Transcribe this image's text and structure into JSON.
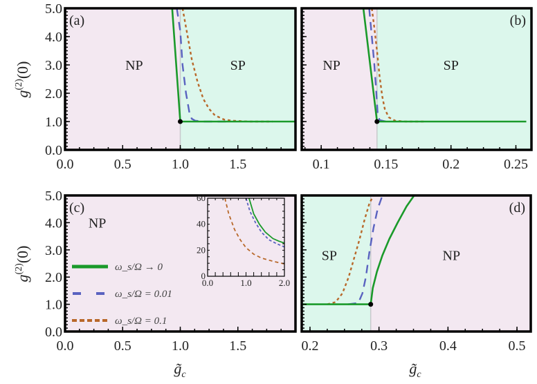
{
  "chart_data": [
    {
      "type": "line",
      "panel": "(a)",
      "xlabel": "",
      "ylabel": "g^(2)(0)",
      "xlim": [
        0.0,
        2.0
      ],
      "ylim": [
        0.0,
        5.0
      ],
      "xticks": [
        "0.0",
        "0.5",
        "1.0",
        "1.5"
      ],
      "xtick_values": [
        0.0,
        0.5,
        1.0,
        1.5
      ],
      "yticks": [
        "0.0",
        "1.0",
        "2.0",
        "3.0",
        "4.0",
        "5.0"
      ],
      "ytick_values": [
        0,
        1,
        2,
        3,
        4,
        5
      ],
      "critical_point": [
        1.0,
        1.0
      ],
      "regions": [
        {
          "label": "NP",
          "from": 0.0,
          "to": 1.0,
          "color": "#f3e8f1",
          "label_pos": [
            0.6,
            3.0
          ]
        },
        {
          "label": "SP",
          "from": 1.0,
          "to": 2.0,
          "color": "#dcf7ec",
          "label_pos": [
            1.5,
            3.0
          ]
        }
      ],
      "series": [
        {
          "name": "omega_s/Omega -> 0",
          "style": "solid",
          "x": [
            0.93,
            1.0,
            1.0,
            2.0
          ],
          "y": [
            5.0,
            1.0,
            1.0,
            1.0
          ]
        },
        {
          "name": "omega_s/Omega = 0.01",
          "style": "dashed",
          "x": [
            0.97,
            1.0,
            1.02,
            1.05,
            1.08,
            1.1,
            1.13,
            1.2,
            1.4
          ],
          "y": [
            5.0,
            4.2,
            3.0,
            2.0,
            1.3,
            1.1,
            1.03,
            1.0,
            1.0
          ]
        },
        {
          "name": "omega_s/Omega = 0.1",
          "style": "dotted",
          "x": [
            1.02,
            1.06,
            1.1,
            1.15,
            1.2,
            1.25,
            1.3,
            1.38,
            1.45,
            1.6,
            1.8
          ],
          "y": [
            5.0,
            4.1,
            3.2,
            2.4,
            1.8,
            1.45,
            1.22,
            1.07,
            1.03,
            1.0,
            1.0
          ]
        }
      ]
    },
    {
      "type": "line",
      "panel": "(b)",
      "xlabel": "",
      "ylabel": "",
      "xlim": [
        0.085,
        0.262
      ],
      "ylim": [
        0.0,
        5.0
      ],
      "xticks": [
        "0.1",
        "0.15",
        "0.2",
        "0.25"
      ],
      "xtick_values": [
        0.1,
        0.15,
        0.2,
        0.25
      ],
      "yticks": [],
      "ytick_values": [
        0,
        1,
        2,
        3,
        4,
        5
      ],
      "critical_point": [
        0.143,
        1.0
      ],
      "regions": [
        {
          "label": "NP",
          "from": 0.085,
          "to": 0.143,
          "color": "#f3e8f1",
          "label_pos": [
            0.108,
            3.0
          ]
        },
        {
          "label": "SP",
          "from": 0.143,
          "to": 0.262,
          "color": "#dcf7ec",
          "label_pos": [
            0.2,
            3.0
          ]
        }
      ],
      "series": [
        {
          "name": "omega_s/Omega -> 0",
          "style": "solid",
          "x": [
            0.1325,
            0.143,
            0.143,
            0.258
          ],
          "y": [
            5.0,
            1.0,
            1.0,
            1.0
          ]
        },
        {
          "name": "omega_s/Omega = 0.01",
          "style": "dashed",
          "x": [
            0.137,
            0.139,
            0.141,
            0.1425,
            0.1435,
            0.145,
            0.15
          ],
          "y": [
            5.0,
            4.0,
            3.0,
            2.0,
            1.3,
            1.05,
            1.0
          ]
        },
        {
          "name": "omega_s/Omega = 0.1",
          "style": "dotted",
          "x": [
            0.139,
            0.141,
            0.143,
            0.145,
            0.147,
            0.149,
            0.152,
            0.157,
            0.165,
            0.18
          ],
          "y": [
            5.0,
            4.3,
            3.5,
            2.6,
            1.9,
            1.45,
            1.15,
            1.03,
            1.0,
            1.0
          ]
        }
      ]
    },
    {
      "type": "line",
      "panel": "(c)",
      "xlabel": "g̃_c",
      "ylabel": "g^(2)(0)",
      "xlim": [
        0.0,
        2.0
      ],
      "ylim": [
        0.0,
        5.0
      ],
      "xticks": [
        "0.0",
        "0.5",
        "1.0",
        "1.5"
      ],
      "xtick_values": [
        0.0,
        0.5,
        1.0,
        1.5
      ],
      "yticks": [
        "0.0",
        "1.0",
        "2.0",
        "3.0",
        "4.0",
        "5.0"
      ],
      "ytick_values": [
        0,
        1,
        2,
        3,
        4,
        5
      ],
      "regions": [
        {
          "label": "NP",
          "from": 0.0,
          "to": 2.0,
          "color": "#f3e8f1",
          "label_pos": [
            0.28,
            4.0
          ]
        }
      ],
      "legend": [
        {
          "label": "ω_s/Ω → 0",
          "style": "solid"
        },
        {
          "label": "ω_s/Ω = 0.01",
          "style": "dashed"
        },
        {
          "label": "ω_s/Ω = 0.1",
          "style": "dotted"
        }
      ],
      "legend_position": "left",
      "inset": {
        "xlim": [
          0.0,
          2.0
        ],
        "ylim": [
          0,
          60
        ],
        "xticks": [
          "0.0",
          "1.0",
          "2.0"
        ],
        "xtick_values": [
          0.0,
          1.0,
          2.0
        ],
        "yticks": [
          "0",
          "20",
          "40",
          "60"
        ],
        "ytick_values": [
          0,
          20,
          40,
          60
        ],
        "series": [
          {
            "name": "omega_s/Omega -> 0",
            "style": "solid",
            "x": [
              1.08,
              1.2,
              1.35,
              1.5,
              1.7,
              1.85,
              2.0
            ],
            "y": [
              60,
              48,
              40,
              34,
              29,
              27,
              25.5
            ]
          },
          {
            "name": "omega_s/Omega = 0.01",
            "style": "dashed",
            "x": [
              1.0,
              1.1,
              1.25,
              1.4,
              1.6,
              1.8,
              2.0
            ],
            "y": [
              60,
              50,
              41,
              34,
              28,
              25,
              22.5
            ]
          },
          {
            "name": "omega_s/Omega = 0.1",
            "style": "dashed-orange",
            "x": [
              0.45,
              0.55,
              0.7,
              0.85,
              1.0,
              1.2,
              1.4,
              1.7,
              2.0
            ],
            "y": [
              60,
              48,
              36,
              28,
              22,
              17,
              14,
              11.5,
              9.5
            ]
          }
        ]
      }
    },
    {
      "type": "line",
      "panel": "(d)",
      "xlabel": "g̃_c",
      "ylabel": "",
      "xlim": [
        0.188,
        0.52
      ],
      "ylim": [
        0.0,
        5.0
      ],
      "xticks": [
        "0.2",
        "0.3",
        "0.4",
        "0.5"
      ],
      "xtick_values": [
        0.2,
        0.3,
        0.4,
        0.5
      ],
      "yticks": [],
      "ytick_values": [
        0,
        1,
        2,
        3,
        4,
        5
      ],
      "critical_point": [
        0.288,
        1.0
      ],
      "regions": [
        {
          "label": "SP",
          "from": 0.188,
          "to": 0.288,
          "color": "#dcf7ec",
          "label_pos": [
            0.228,
            2.8
          ]
        },
        {
          "label": "NP",
          "from": 0.288,
          "to": 0.52,
          "color": "#f3e8f1",
          "label_pos": [
            0.405,
            2.8
          ]
        }
      ],
      "series": [
        {
          "name": "omega_s/Omega -> 0",
          "style": "solid",
          "x": [
            0.188,
            0.288,
            0.288,
            0.291,
            0.297,
            0.305,
            0.315,
            0.327,
            0.34,
            0.351
          ],
          "y": [
            1.0,
            1.0,
            1.0,
            1.6,
            2.2,
            2.8,
            3.4,
            4.0,
            4.6,
            5.0
          ]
        },
        {
          "name": "omega_s/Omega = 0.01",
          "style": "dashed",
          "x": [
            0.255,
            0.27,
            0.276,
            0.281,
            0.286,
            0.292,
            0.298,
            0.305
          ],
          "y": [
            1.0,
            1.05,
            1.4,
            2.0,
            2.9,
            3.8,
            4.5,
            5.0
          ]
        },
        {
          "name": "omega_s/Omega = 0.1",
          "style": "dotted",
          "x": [
            0.225,
            0.237,
            0.247,
            0.256,
            0.264,
            0.272,
            0.279,
            0.286,
            0.292
          ],
          "y": [
            1.0,
            1.08,
            1.4,
            2.0,
            2.7,
            3.4,
            4.1,
            4.7,
            5.0
          ]
        }
      ]
    }
  ],
  "styles": {
    "solid": {
      "color": "#1a9a2a"
    },
    "dashed": {
      "color": "#5a62c0"
    },
    "dotted": {
      "color": "#b8682a"
    },
    "dashed-orange": {
      "color": "#b8682a"
    }
  },
  "axis_titles": {
    "y": "g",
    "y_sup": "(2)",
    "y_rest": "(0)",
    "x": "g̃",
    "x_sub": "c"
  }
}
